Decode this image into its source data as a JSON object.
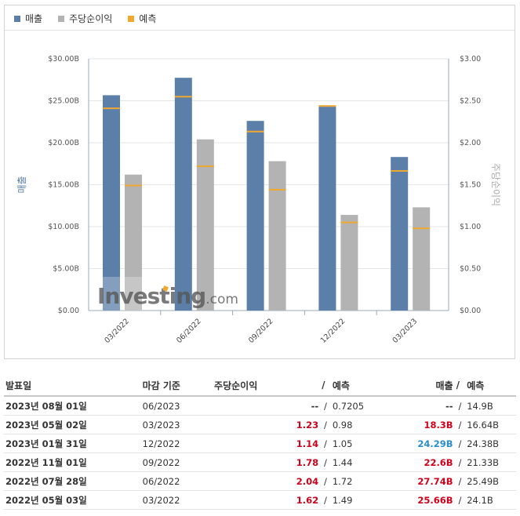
{
  "legend": {
    "revenue": "매출",
    "eps": "주당순이익",
    "forecast": "예측"
  },
  "colors": {
    "revenue": "#5b7fa9",
    "eps": "#b3b3b3",
    "forecast": "#f0a830",
    "positive": "#d0021b",
    "negative": "#2a8ec8",
    "neutral": "#333333"
  },
  "watermark": {
    "brand": "Investing",
    "suffix": ".com"
  },
  "chart_data": {
    "type": "bar",
    "categories": [
      "03/2022",
      "06/2022",
      "09/2022",
      "12/2022",
      "03/2023"
    ],
    "series": [
      {
        "name": "매출",
        "axis": "left",
        "values": [
          25.66,
          27.74,
          22.6,
          24.29,
          18.3
        ]
      },
      {
        "name": "주당순이익",
        "axis": "right",
        "values": [
          1.62,
          2.04,
          1.78,
          1.14,
          1.23
        ]
      }
    ],
    "forecast": {
      "name": "예측",
      "revenue": [
        24.1,
        25.49,
        21.33,
        24.38,
        16.64
      ],
      "eps": [
        1.49,
        1.72,
        1.44,
        1.05,
        0.98
      ]
    },
    "ylabel": "매출",
    "y2label": "주당순이익",
    "ylim": [
      0,
      30
    ],
    "y2lim": [
      0,
      3
    ],
    "yticks": [
      "$0.00",
      "$5.00B",
      "$10.00B",
      "$15.00B",
      "$20.00B",
      "$25.00B",
      "$30.00B"
    ],
    "y2ticks": [
      "$0.00",
      "$0.50",
      "$1.00",
      "$1.50",
      "$2.00",
      "$2.50",
      "$3.00"
    ],
    "grid": true,
    "legend_position": "top-left"
  },
  "table": {
    "headers": {
      "date": "발표일",
      "period": "마감 기준",
      "eps": "주당순이익",
      "sep": "/",
      "fc1": "예측",
      "rev": "매출",
      "fc2": "예측"
    },
    "rows": [
      {
        "date": "2023년 08월 01일",
        "period": "06/2023",
        "eps": "--",
        "eps_color": "neutral",
        "eps_fc": "0.7205",
        "rev": "--",
        "rev_color": "neutral",
        "rev_fc": "14.9B"
      },
      {
        "date": "2023년 05월 02일",
        "period": "03/2023",
        "eps": "1.23",
        "eps_color": "positive",
        "eps_fc": "0.98",
        "rev": "18.3B",
        "rev_color": "positive",
        "rev_fc": "16.64B"
      },
      {
        "date": "2023년 01월 31일",
        "period": "12/2022",
        "eps": "1.14",
        "eps_color": "positive",
        "eps_fc": "1.05",
        "rev": "24.29B",
        "rev_color": "negative",
        "rev_fc": "24.38B"
      },
      {
        "date": "2022년 11월 01일",
        "period": "09/2022",
        "eps": "1.78",
        "eps_color": "positive",
        "eps_fc": "1.44",
        "rev": "22.6B",
        "rev_color": "positive",
        "rev_fc": "21.33B"
      },
      {
        "date": "2022년 07월 28일",
        "period": "06/2022",
        "eps": "2.04",
        "eps_color": "positive",
        "eps_fc": "1.72",
        "rev": "27.74B",
        "rev_color": "positive",
        "rev_fc": "25.49B"
      },
      {
        "date": "2022년 05월 03일",
        "period": "03/2022",
        "eps": "1.62",
        "eps_color": "positive",
        "eps_fc": "1.49",
        "rev": "25.66B",
        "rev_color": "positive",
        "rev_fc": "24.1B"
      }
    ]
  }
}
